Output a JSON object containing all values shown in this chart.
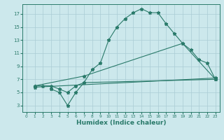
{
  "line1_x": [
    1,
    2,
    3,
    4,
    5,
    6,
    7,
    8,
    9,
    10,
    11,
    12,
    13,
    14,
    15,
    16,
    17,
    18,
    19,
    20,
    21,
    22,
    23
  ],
  "line1_y": [
    6,
    6,
    6,
    5.5,
    5,
    6,
    6.5,
    8.5,
    9.5,
    13,
    15,
    16.3,
    17.2,
    17.8,
    17.2,
    17.2,
    15.5,
    14,
    12.5,
    11.5,
    10,
    9.5,
    7
  ],
  "line2_x": [
    1,
    7,
    19,
    23
  ],
  "line2_y": [
    6,
    7.5,
    12.5,
    7
  ],
  "line3_x": [
    1,
    23
  ],
  "line3_y": [
    5.8,
    7.2
  ],
  "line4_x": [
    3,
    4,
    5,
    6,
    7,
    23
  ],
  "line4_y": [
    5.5,
    5,
    3,
    5,
    6.5,
    7
  ],
  "color": "#2a7a6a",
  "bg_color": "#cce8ec",
  "grid_color": "#aaccd4",
  "xlabel": "Humidex (Indice chaleur)",
  "xlim": [
    -0.5,
    23.5
  ],
  "ylim": [
    2.0,
    18.5
  ],
  "xticks": [
    0,
    1,
    2,
    3,
    4,
    5,
    6,
    7,
    8,
    9,
    10,
    11,
    12,
    13,
    14,
    15,
    16,
    17,
    18,
    19,
    20,
    21,
    22,
    23
  ],
  "yticks": [
    3,
    5,
    7,
    9,
    11,
    13,
    15,
    17
  ]
}
